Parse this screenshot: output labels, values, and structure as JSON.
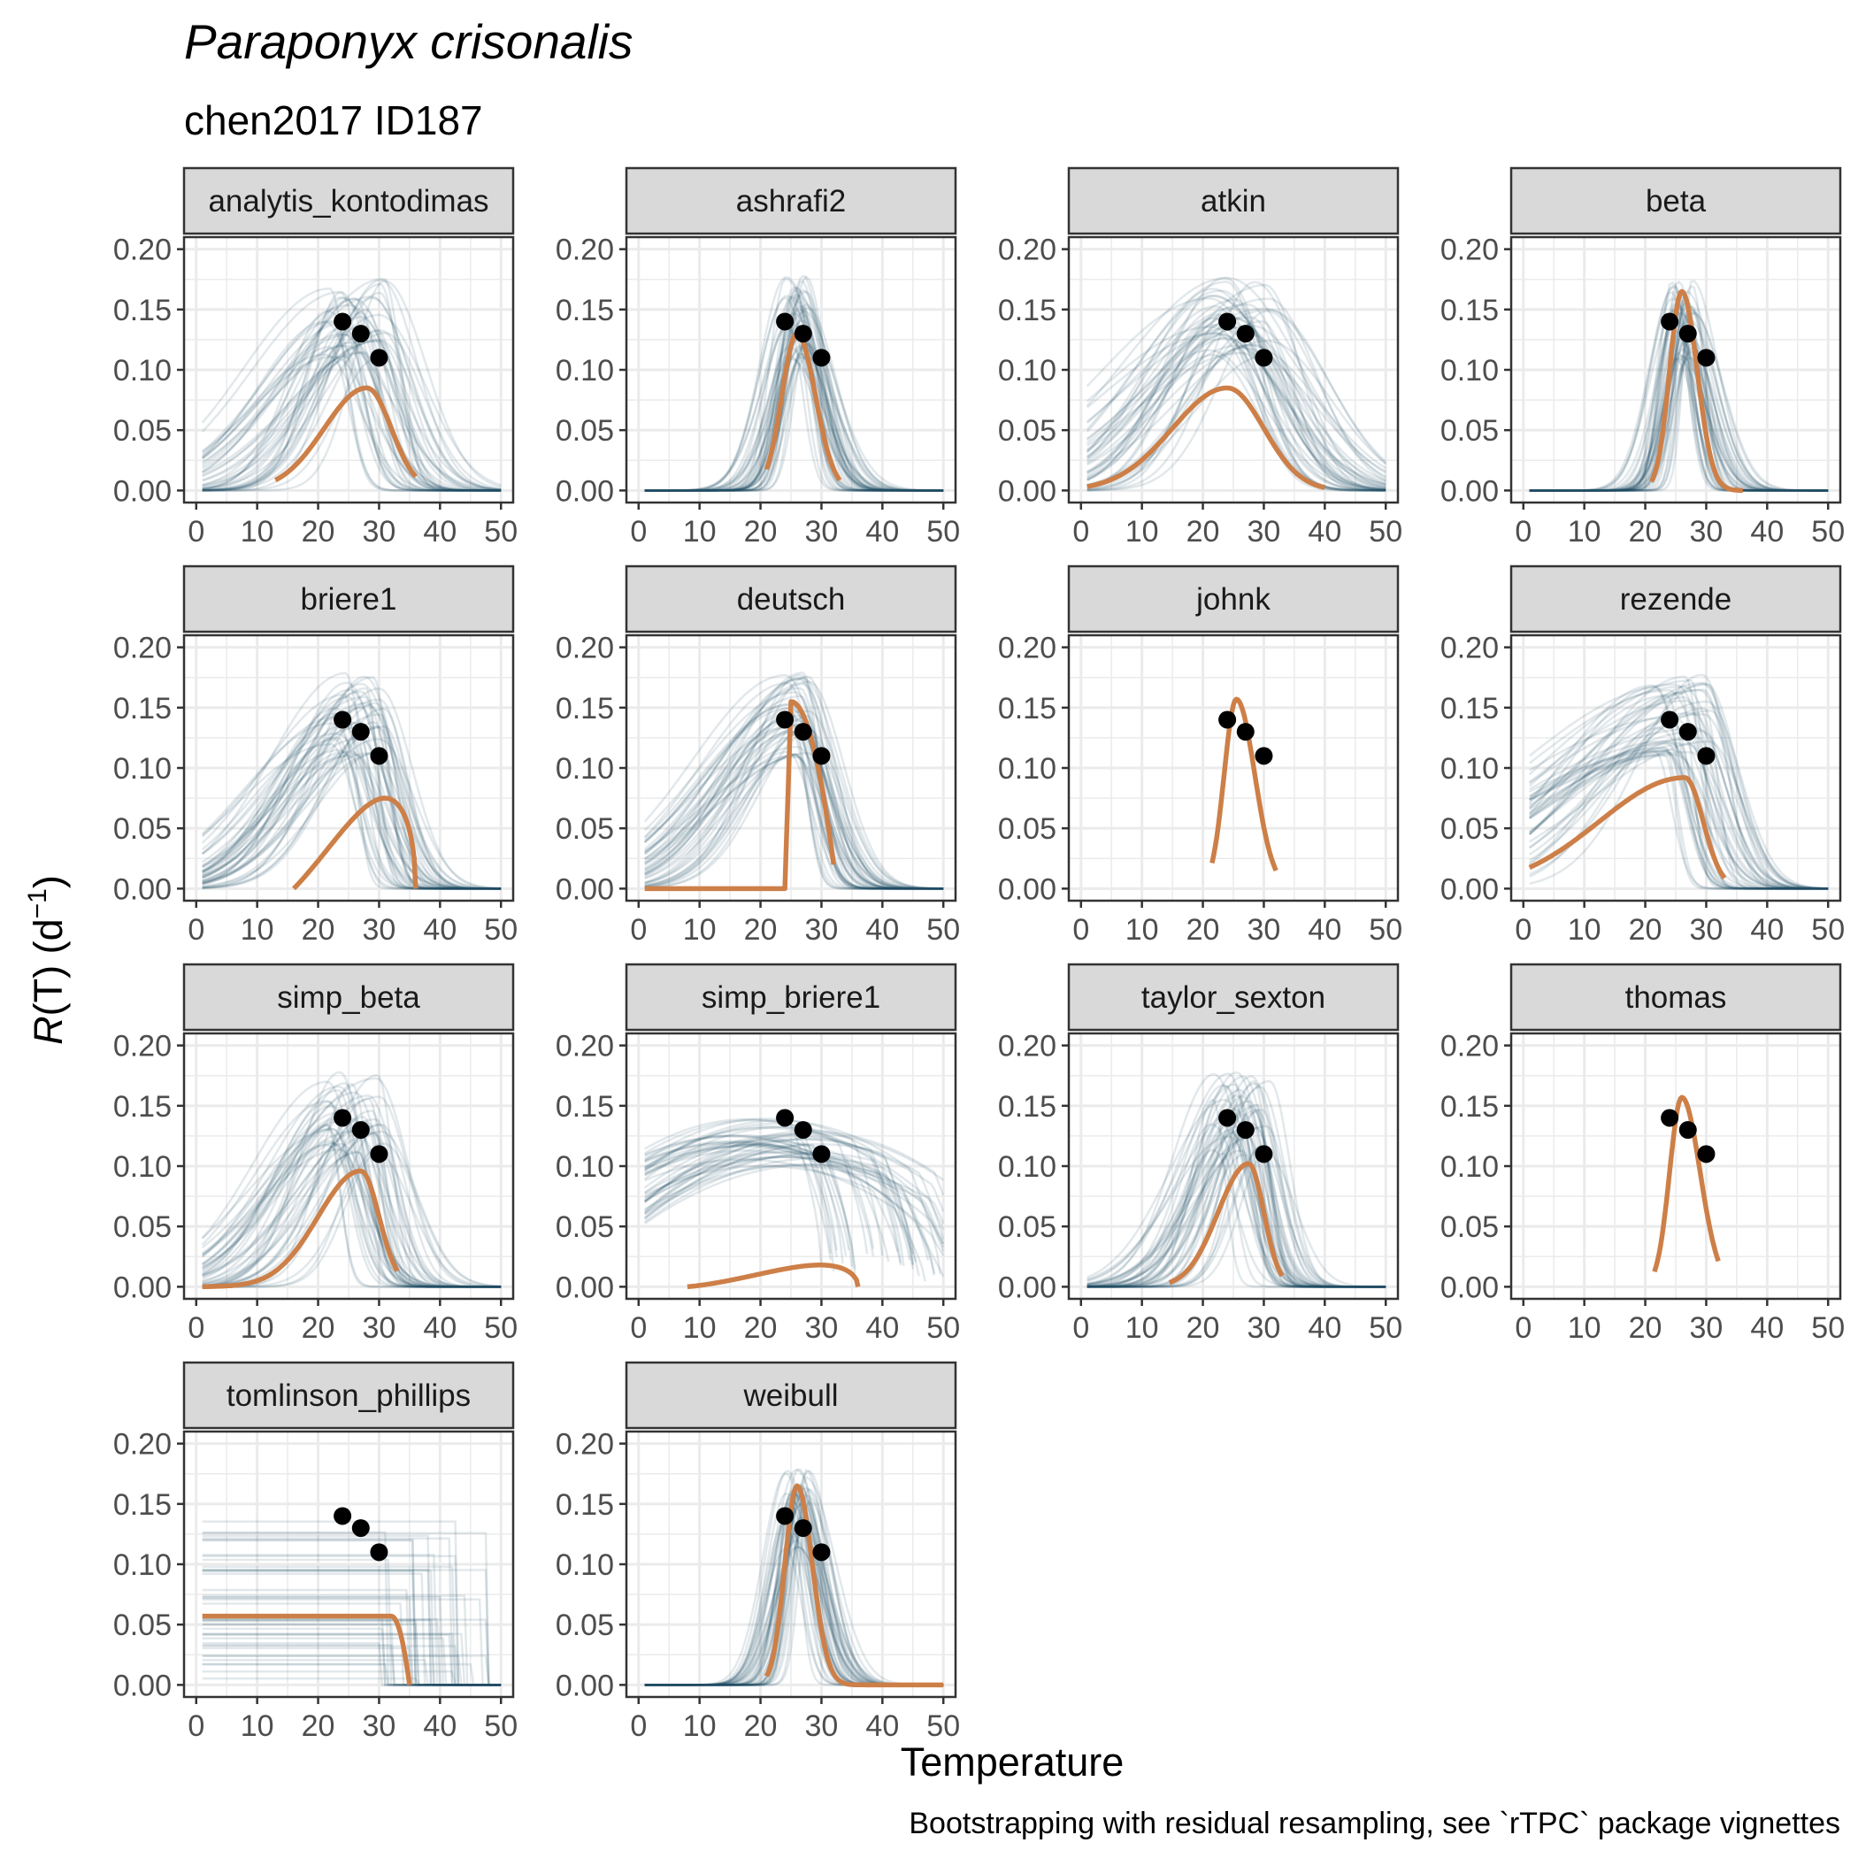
{
  "title": "Paraponyx crisonalis",
  "subtitle": "chen2017 ID187",
  "caption": "Bootstrapping with residual resampling, see `rTPC` package vignettes",
  "colors": {
    "fit": "#cd7f48",
    "bootstrap": "#1f4e66",
    "points": "#000000",
    "strip_fill": "#d9d9d9",
    "grid": "#ebebeb",
    "panel_border": "#333333"
  },
  "chart_data": {
    "type": "line",
    "xlabel": "Temperature",
    "ylabel_main": "R",
    "ylabel_rest": "(T) (d",
    "ylabel_sup": "−1",
    "ylabel_end": ")",
    "xlim": [
      -2,
      52
    ],
    "ylim": [
      -0.01,
      0.21
    ],
    "x_ticks": [
      "0",
      "10",
      "20",
      "30",
      "40",
      "50"
    ],
    "y_ticks": [
      "0.00",
      "0.05",
      "0.10",
      "0.15",
      "0.20"
    ],
    "observed_points": [
      {
        "x": 24,
        "y": 0.14
      },
      {
        "x": 27,
        "y": 0.13
      },
      {
        "x": 30,
        "y": 0.11
      }
    ],
    "panels": [
      {
        "name": "analytis_kontodimas",
        "fit": {
          "kind": "bell",
          "peak_x": 28,
          "peak_y": 0.085,
          "width_left": 7,
          "width_right": 4,
          "x_start": 13,
          "x_end": 36
        },
        "boot": {
          "spread": "wide"
        }
      },
      {
        "name": "ashrafi2",
        "fit": {
          "kind": "bell",
          "peak_x": 26,
          "peak_y": 0.13,
          "width_left": 2.5,
          "width_right": 3,
          "x_start": 21,
          "x_end": 33
        },
        "boot": {
          "spread": "medium"
        }
      },
      {
        "name": "atkin",
        "fit": {
          "kind": "bell",
          "peak_x": 24,
          "peak_y": 0.085,
          "width_left": 9,
          "width_right": 6,
          "x_start": 1,
          "x_end": 40
        },
        "boot": {
          "spread": "wide"
        }
      },
      {
        "name": "beta",
        "fit": {
          "kind": "bell",
          "peak_x": 26,
          "peak_y": 0.165,
          "width_left": 2,
          "width_right": 2.5,
          "x_start": 21,
          "x_end": 36
        },
        "boot": {
          "spread": "narrow"
        }
      },
      {
        "name": "briere1",
        "fit": {
          "kind": "briere",
          "peak_x": 32,
          "peak_y": 0.075,
          "x_start": 16,
          "x_end": 36
        },
        "boot": {
          "spread": "wide"
        }
      },
      {
        "name": "deutsch",
        "fit": {
          "kind": "deutsch",
          "peak_x": 25,
          "peak_y": 0.155,
          "x_start": 1,
          "x_end": 32
        },
        "boot": {
          "spread": "narrow"
        }
      },
      {
        "name": "johnk",
        "fit": {
          "kind": "bell",
          "peak_x": 25.5,
          "peak_y": 0.157,
          "width_left": 2,
          "width_right": 3,
          "x_start": 21.5,
          "x_end": 32
        },
        "boot": {
          "spread": "none"
        }
      },
      {
        "name": "rezende",
        "fit": {
          "kind": "bell",
          "peak_x": 26.5,
          "peak_y": 0.092,
          "width_left": 14,
          "width_right": 3,
          "x_start": 1,
          "x_end": 33
        },
        "boot": {
          "spread": "wide"
        }
      },
      {
        "name": "simp_beta",
        "fit": {
          "kind": "bell",
          "peak_x": 27,
          "peak_y": 0.096,
          "width_left": 7,
          "width_right": 3,
          "x_start": 1,
          "x_end": 33
        },
        "boot": {
          "spread": "wide"
        }
      },
      {
        "name": "simp_briere1",
        "fit": {
          "kind": "briere",
          "peak_x": 27,
          "peak_y": 0.018,
          "x_start": 8,
          "x_end": 36
        },
        "boot": {
          "spread": "flat"
        }
      },
      {
        "name": "taylor_sexton",
        "fit": {
          "kind": "bell",
          "peak_x": 27.5,
          "peak_y": 0.102,
          "width_left": 5,
          "width_right": 2.5,
          "x_start": 14.5,
          "x_end": 33
        },
        "boot": {
          "spread": "wide"
        }
      },
      {
        "name": "thomas",
        "fit": {
          "kind": "bell",
          "peak_x": 26,
          "peak_y": 0.157,
          "width_left": 2,
          "width_right": 3,
          "x_start": 21.5,
          "x_end": 32
        },
        "boot": {
          "spread": "none"
        }
      },
      {
        "name": "tomlinson_phillips",
        "fit": {
          "kind": "plateau",
          "peak_x": 32,
          "peak_y": 0.057,
          "x_start": 1,
          "x_end": 35
        },
        "boot": {
          "spread": "plateau"
        }
      },
      {
        "name": "weibull",
        "fit": {
          "kind": "bell",
          "peak_x": 26,
          "peak_y": 0.165,
          "width_left": 2,
          "width_right": 2.5,
          "x_start": 21,
          "x_end": 50
        },
        "boot": {
          "spread": "narrow"
        }
      }
    ]
  }
}
